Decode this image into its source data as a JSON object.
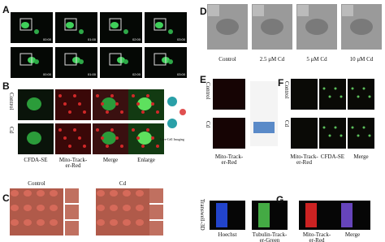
{
  "panels": {
    "A": {
      "letter": "A",
      "timestamps": [
        "00:00",
        "01:00",
        "02:00",
        "03:00"
      ]
    },
    "B": {
      "letter": "B",
      "rows": [
        "Control",
        "Cd"
      ],
      "columns": [
        "CFDA-SE",
        "Mito-Track-\ner-Red",
        "Merge",
        "Enlarge"
      ],
      "diagram_caption": "Live-Cell Imaging"
    },
    "C": {
      "letter": "C",
      "columns": [
        "Control",
        "Cd"
      ]
    },
    "D": {
      "letter": "D",
      "columns": [
        "Control",
        "2.5 μM Cd",
        "5 μM Cd",
        "10 μM Cd"
      ]
    },
    "E": {
      "letter": "E",
      "rows": [
        "Control",
        "Cd"
      ],
      "column": "Mito-Track-\ner-Red"
    },
    "F": {
      "letter": "F",
      "rows": [
        "Control",
        "Cd"
      ],
      "columns": [
        "Mito-Track-\ner-Red",
        "CFDA-SE",
        "Merge"
      ]
    },
    "G": {
      "letter": "G",
      "row": "Transwell-3D",
      "columns": [
        "Hoechst",
        "Tubulin-Track-\ner-Green",
        "Mito-Track-\ner-Red",
        "Merge"
      ]
    }
  }
}
